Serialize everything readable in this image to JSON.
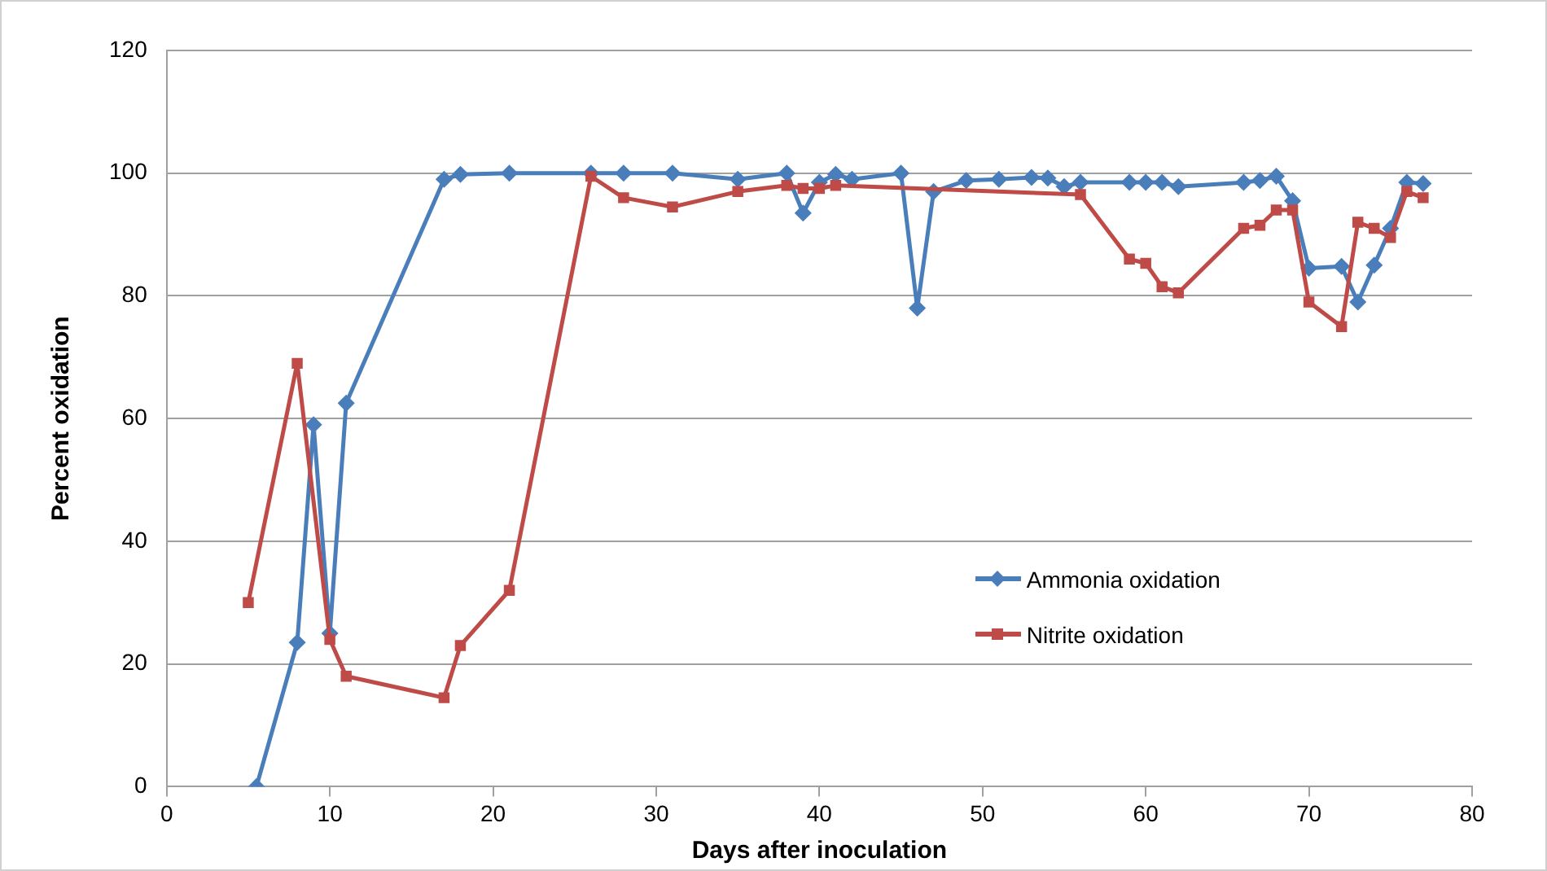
{
  "chart_data": {
    "type": "line",
    "xlabel": "Days after inoculation",
    "ylabel": "Percent oxidation",
    "xlim": [
      0,
      80
    ],
    "xticks": [
      0,
      10,
      20,
      30,
      40,
      50,
      60,
      70,
      80
    ],
    "ylim": [
      0,
      120
    ],
    "yticks": [
      0,
      20,
      40,
      60,
      80,
      100,
      120
    ],
    "grid": "y",
    "legend": "right",
    "line_style": "solid",
    "series": [
      {
        "name": "Ammonia oxidation",
        "color": "#4a7ebb",
        "marker": "diamond",
        "x": [
          5.5,
          8,
          9,
          10,
          11,
          17,
          18,
          21,
          26,
          28,
          31,
          35,
          38,
          39,
          40,
          41,
          42,
          45,
          46,
          47,
          49,
          51,
          53,
          54,
          55,
          56,
          59,
          60,
          61,
          62,
          66,
          67,
          68,
          69,
          70,
          72,
          73,
          74,
          75,
          76,
          77
        ],
        "values": [
          0,
          23.5,
          59,
          25,
          62.5,
          99,
          99.8,
          100,
          100,
          100,
          100,
          99,
          100,
          93.5,
          98.5,
          99.8,
          99,
          100,
          78,
          97,
          98.8,
          99,
          99.3,
          99.2,
          97.8,
          98.5,
          98.5,
          98.5,
          98.5,
          97.8,
          98.5,
          98.8,
          99.5,
          95.5,
          84.5,
          84.8,
          79,
          85,
          91,
          98.5,
          98.3
        ]
      },
      {
        "name": "Nitrite oxidation",
        "color": "#be4b48",
        "marker": "square",
        "x": [
          5,
          8,
          10,
          11,
          17,
          18,
          21,
          26,
          28,
          31,
          35,
          38,
          39,
          40,
          41,
          56,
          59,
          60,
          61,
          62,
          66,
          67,
          68,
          69,
          70,
          72,
          73,
          74,
          75,
          76,
          77
        ],
        "values": [
          30,
          69,
          24,
          18,
          14.5,
          23,
          32,
          99.5,
          96,
          94.5,
          97,
          98,
          97.5,
          97.5,
          98,
          96.5,
          86,
          85.3,
          81.5,
          80.5,
          91,
          91.5,
          94,
          94,
          79,
          75,
          92,
          91,
          89.5,
          97,
          96
        ]
      }
    ]
  }
}
